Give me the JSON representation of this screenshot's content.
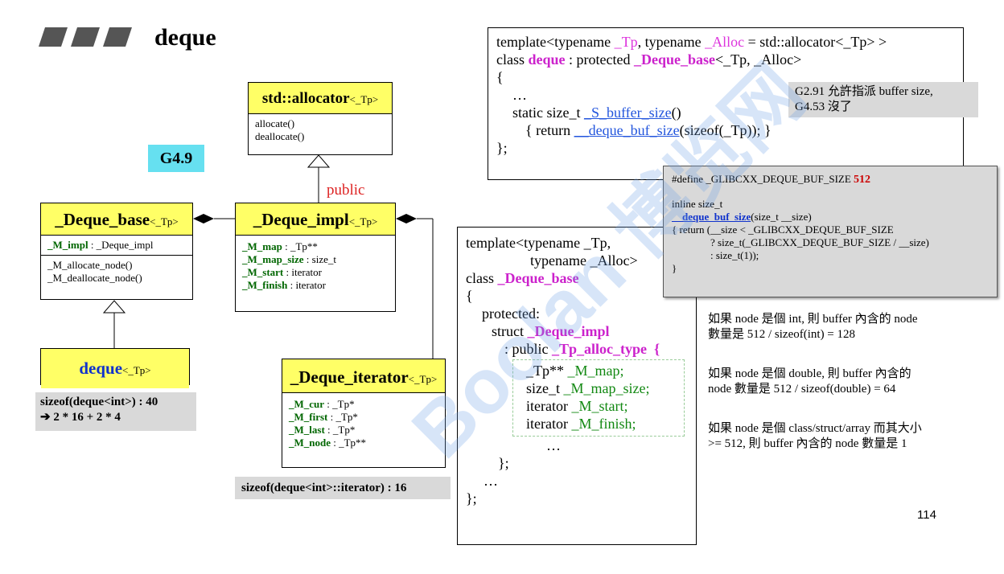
{
  "slide": {
    "title": "deque",
    "page_number": "114",
    "version_tag": "G4.9"
  },
  "watermark": {
    "text": "Boolan 博览网"
  },
  "uml": {
    "allocator": {
      "name": "std::allocator",
      "tparam": "<_Tp>",
      "methods": [
        "allocate()",
        "deallocate()"
      ]
    },
    "inherit_label": "public",
    "deque_base": {
      "name": "_Deque_base",
      "tparam": "<_Tp>",
      "field_name": "_M_impl",
      "field_type": " : _Deque_impl",
      "methods": [
        "_M_allocate_node()",
        "_M_deallocate_node()"
      ]
    },
    "deque_impl": {
      "name": "_Deque_impl",
      "tparam": "<_Tp>",
      "fields": [
        {
          "name": "_M_map",
          "type": " : _Tp**"
        },
        {
          "name": "_M_map_size",
          "type": " : size_t"
        },
        {
          "name": "_M_start",
          "type": " : iterator"
        },
        {
          "name": "_M_finish",
          "type": " : iterator"
        }
      ]
    },
    "deque": {
      "name": "deque",
      "tparam": "<_Tp>"
    },
    "deque_iterator": {
      "name": "_Deque_iterator",
      "tparam": "<_Tp>",
      "fields": [
        {
          "name": "_M_cur",
          "type": " : _Tp*"
        },
        {
          "name": "_M_first",
          "type": " : _Tp*"
        },
        {
          "name": "_M_last",
          "type": " : _Tp*"
        },
        {
          "name": "_M_node",
          "type": " : _Tp**"
        }
      ]
    }
  },
  "sizes": {
    "deque_line1": "sizeof(deque<int>) : 40",
    "deque_line2": "➔ 2 * 16 + 2 * 4",
    "iterator_line": "sizeof(deque<int>::iterator) : 16"
  },
  "code1": {
    "l1_a": "template<typename ",
    "l1_tp": "_Tp",
    "l1_b": ", typename ",
    "l1_alloc": "_Alloc",
    "l1_c": " = std::allocator<_Tp> >",
    "l2_a": "class ",
    "l2_deque": "deque",
    "l2_b": " : protected ",
    "l2_base": "_Deque_base",
    "l2_c": "<_Tp, _Alloc>",
    "l3": "{",
    "l4": "…",
    "l5_a": "static size_t ",
    "l5_fn": "_S_buffer_size",
    "l5_b": "()",
    "l6_a": "{ return ",
    "l6_fn": "__deque_buf_size",
    "l6_b": "(sizeof(_Tp)); }",
    "l7": "};"
  },
  "note_g291": {
    "line1": "G2.91 允許指派 buffer size,",
    "line2": "G4.53 沒了"
  },
  "define_box": {
    "l1_a": "#define _GLIBCXX_DEQUE_BUF_SIZE ",
    "l1_val": "512",
    "l2": "inline size_t",
    "l3_fn": "__deque_buf_size",
    "l3_b": "(size_t __size)",
    "l4": "{ return (__size < _GLIBCXX_DEQUE_BUF_SIZE",
    "l5": "? size_t(_GLIBCXX_DEQUE_BUF_SIZE / __size)",
    "l6": ": size_t(1));",
    "l7": "}"
  },
  "code2": {
    "l1": "template<typename _Tp,",
    "l2": "typename _Alloc>",
    "l3_a": "class ",
    "l3_name": "_Deque_base",
    "l4": "{",
    "l5": "protected:",
    "l6_a": "struct ",
    "l6_name": "_Deque_impl",
    "l7_a": ": public ",
    "l7_name": "_Tp_alloc_type",
    "l7_b": "  {",
    "f1_a": "_Tp** ",
    "f1_b": "_M_map;",
    "f2_a": "size_t ",
    "f2_b": "_M_map_size;",
    "f3_a": "iterator ",
    "f3_b": "_M_start;",
    "f4_a": "iterator ",
    "f4_b": "_M_finish;",
    "l9": "…",
    "l10": "};",
    "l11": "…",
    "l12": "};"
  },
  "notes": {
    "n1_l1": "如果 node 是個 int, 則 buffer 內含的 node",
    "n1_l2": "數量是 512 / sizeof(int) = 128",
    "n2_l1": "如果 node 是個 double, 則 buffer 內含的",
    "n2_l2": "node 數量是 512 / sizeof(double) = 64",
    "n3_l1": "如果 node 是個 class/struct/array 而其大小",
    "n3_l2": ">= 512, 則 buffer 內含的 node 數量是 1"
  }
}
